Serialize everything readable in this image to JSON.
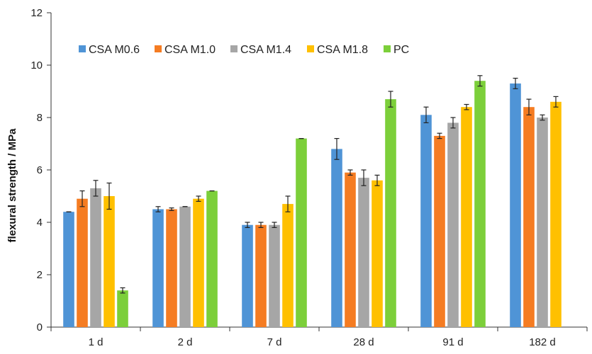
{
  "chart_data": {
    "type": "bar",
    "title": "",
    "xlabel": "",
    "ylabel": "flexural strength / MPa",
    "ylim": [
      0,
      12
    ],
    "yticks": [
      0,
      2,
      4,
      6,
      8,
      10,
      12
    ],
    "grid": false,
    "legend_position": "top-left",
    "categories": [
      "1 d",
      "2 d",
      "7 d",
      "28 d",
      "91 d",
      "182 d"
    ],
    "series": [
      {
        "name": "CSA M0.6",
        "color": "#4f94d6",
        "values": [
          4.4,
          4.5,
          3.9,
          6.8,
          8.1,
          9.3
        ],
        "errors": [
          0.0,
          0.1,
          0.1,
          0.4,
          0.3,
          0.2
        ]
      },
      {
        "name": "CSA M1.0",
        "color": "#f57c22",
        "values": [
          4.9,
          4.5,
          3.9,
          5.9,
          7.3,
          8.4
        ],
        "errors": [
          0.3,
          0.05,
          0.1,
          0.1,
          0.1,
          0.3
        ]
      },
      {
        "name": "CSA M1.4",
        "color": "#a6a6a6",
        "values": [
          5.3,
          4.6,
          3.9,
          5.7,
          7.8,
          8.0
        ],
        "errors": [
          0.3,
          0.0,
          0.1,
          0.3,
          0.2,
          0.1
        ]
      },
      {
        "name": "CSA M1.8",
        "color": "#ffc000",
        "values": [
          5.0,
          4.9,
          4.7,
          5.6,
          8.4,
          8.6
        ],
        "errors": [
          0.5,
          0.1,
          0.3,
          0.2,
          0.1,
          0.2
        ]
      },
      {
        "name": "PC",
        "color": "#7ccf3a",
        "values": [
          1.4,
          5.2,
          7.2,
          8.7,
          9.4,
          null
        ],
        "errors": [
          0.1,
          0.0,
          0.0,
          0.3,
          0.2,
          null
        ]
      }
    ]
  }
}
